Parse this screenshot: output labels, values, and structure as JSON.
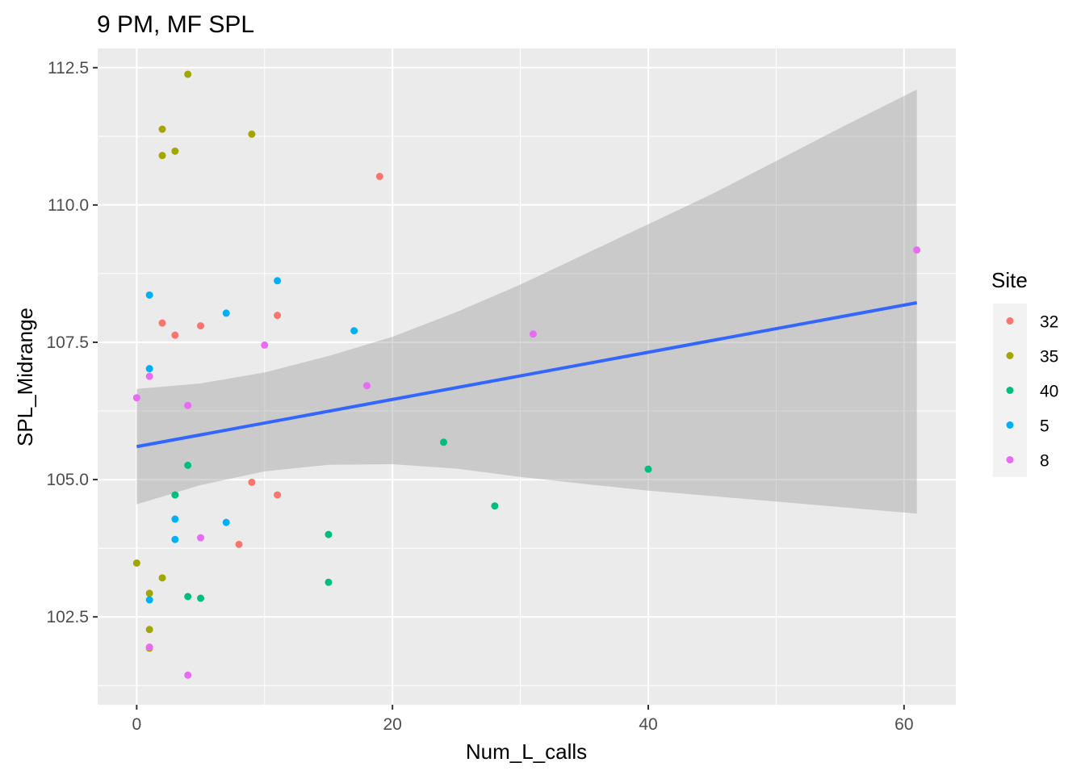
{
  "chart_data": {
    "type": "scatter",
    "title": "9 PM, MF SPL",
    "xlabel": "Num_L_calls",
    "ylabel": "SPL_Midrange",
    "xlim": [
      -3.05,
      64.05
    ],
    "ylim": [
      100.9,
      112.85
    ],
    "x_ticks": [
      0,
      20,
      40,
      60
    ],
    "x_tick_labels": [
      "0",
      "20",
      "40",
      "60"
    ],
    "y_ticks": [
      102.5,
      105.0,
      107.5,
      110.0,
      112.5
    ],
    "y_tick_labels": [
      "102.5",
      "105.0",
      "107.5",
      "110.0",
      "112.5"
    ],
    "grid": true,
    "legend": {
      "title": "Site",
      "position": "right"
    },
    "series": [
      {
        "name": "32",
        "color": "#F8766D",
        "points": [
          [
            2,
            107.85
          ],
          [
            3,
            107.63
          ],
          [
            5,
            107.8
          ],
          [
            11,
            107.99
          ],
          [
            19,
            110.52
          ],
          [
            9,
            104.95
          ],
          [
            11,
            104.72
          ],
          [
            8,
            103.82
          ]
        ]
      },
      {
        "name": "35",
        "color": "#A3A500",
        "points": [
          [
            4,
            112.38
          ],
          [
            2,
            111.38
          ],
          [
            9,
            111.29
          ],
          [
            3,
            110.98
          ],
          [
            2,
            110.9
          ],
          [
            0,
            103.48
          ],
          [
            2,
            103.21
          ],
          [
            1,
            102.93
          ],
          [
            1,
            102.27
          ],
          [
            1,
            101.93
          ]
        ]
      },
      {
        "name": "40",
        "color": "#00BF7D",
        "points": [
          [
            4,
            105.26
          ],
          [
            3,
            104.72
          ],
          [
            24,
            105.68
          ],
          [
            40,
            105.19
          ],
          [
            28,
            104.52
          ],
          [
            15,
            104.0
          ],
          [
            15,
            103.13
          ],
          [
            4,
            102.87
          ],
          [
            5,
            102.84
          ]
        ]
      },
      {
        "name": "5",
        "color": "#00B0F6",
        "points": [
          [
            11,
            108.62
          ],
          [
            1,
            108.36
          ],
          [
            7,
            108.03
          ],
          [
            17,
            107.71
          ],
          [
            1,
            107.02
          ],
          [
            3,
            104.28
          ],
          [
            7,
            104.22
          ],
          [
            3,
            103.91
          ],
          [
            1,
            102.81
          ]
        ]
      },
      {
        "name": "8",
        "color": "#E76BF3",
        "points": [
          [
            61,
            109.18
          ],
          [
            31,
            107.65
          ],
          [
            10,
            107.45
          ],
          [
            1,
            106.88
          ],
          [
            18,
            106.71
          ],
          [
            0,
            106.49
          ],
          [
            4,
            106.35
          ],
          [
            5,
            103.94
          ],
          [
            1,
            101.95
          ],
          [
            4,
            101.44
          ]
        ]
      }
    ],
    "smooth": {
      "method": "linear",
      "color": "#3366FF",
      "line": [
        [
          0,
          105.6
        ],
        [
          61,
          108.22
        ]
      ],
      "ci_band": [
        [
          0,
          104.55,
          106.65
        ],
        [
          5,
          104.9,
          106.75
        ],
        [
          10,
          105.15,
          106.95
        ],
        [
          15,
          105.27,
          107.25
        ],
        [
          20,
          105.28,
          107.6
        ],
        [
          25,
          105.2,
          108.05
        ],
        [
          30,
          105.05,
          108.55
        ],
        [
          35,
          104.92,
          109.1
        ],
        [
          40,
          104.8,
          109.65
        ],
        [
          45,
          104.7,
          110.2
        ],
        [
          50,
          104.6,
          110.8
        ],
        [
          55,
          104.5,
          111.4
        ],
        [
          61,
          104.38,
          112.1
        ]
      ]
    }
  }
}
